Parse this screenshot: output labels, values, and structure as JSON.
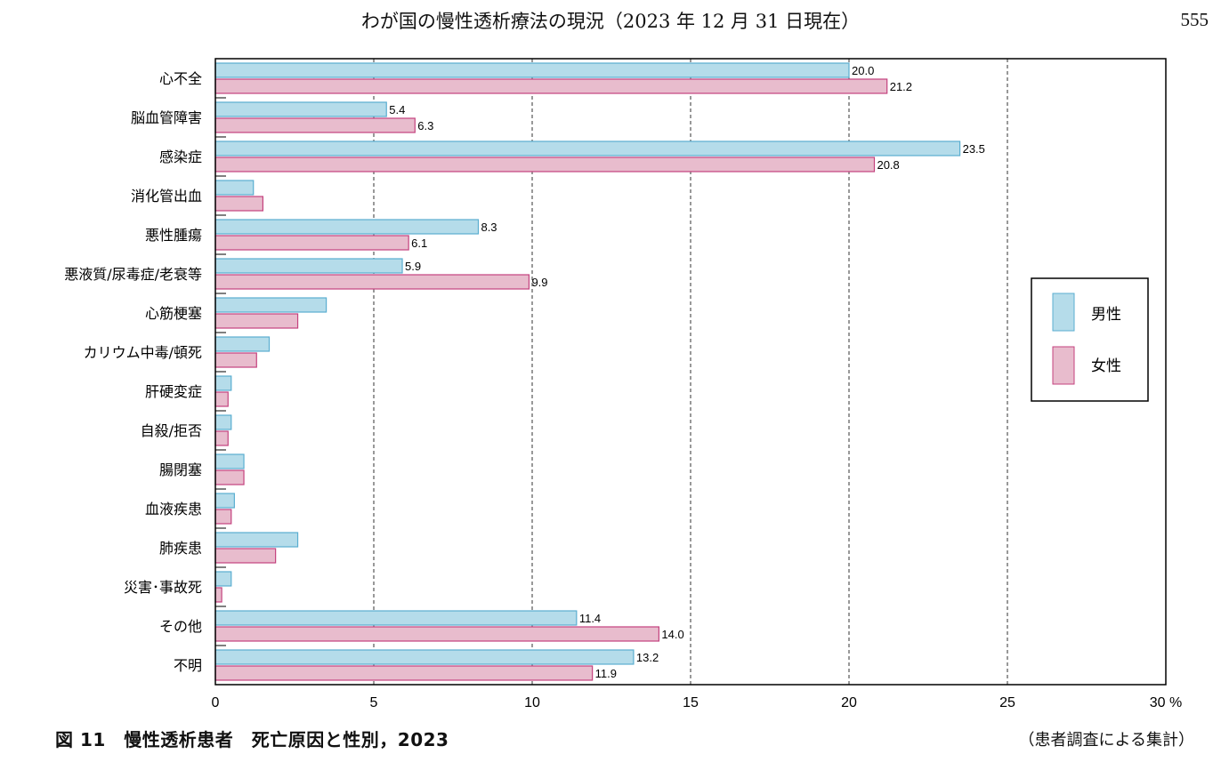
{
  "header": {
    "title": "わが国の慢性透析療法の現況（2023 年 12 月 31 日現在）",
    "page_number": "555"
  },
  "caption": {
    "figure": "図 11　慢性透析患者　死亡原因と性別，2023",
    "source": "（患者調査による集計）"
  },
  "colors": {
    "male_fill": "#b5dcea",
    "male_stroke": "#5aaed0",
    "female_fill": "#e8bccd",
    "female_stroke": "#c4427e"
  },
  "chart_data": {
    "type": "bar",
    "orientation": "horizontal",
    "categories": [
      "心不全",
      "脳血管障害",
      "感染症",
      "消化管出血",
      "悪性腫瘍",
      "悪液質/尿毒症/老衰等",
      "心筋梗塞",
      "カリウム中毒/頓死",
      "肝硬変症",
      "自殺/拒否",
      "腸閉塞",
      "血液疾患",
      "肺疾患",
      "災害･事故死",
      "その他",
      "不明"
    ],
    "series": [
      {
        "name": "男性",
        "values": [
          20.0,
          5.4,
          23.5,
          1.2,
          8.3,
          5.9,
          3.5,
          1.7,
          0.5,
          0.5,
          0.9,
          0.6,
          2.6,
          0.5,
          11.4,
          13.2
        ],
        "labels": [
          "20.0",
          "5.4",
          "23.5",
          "",
          "8.3",
          "5.9",
          "",
          "",
          "",
          "",
          "",
          "",
          "",
          "",
          "11.4",
          "13.2"
        ]
      },
      {
        "name": "女性",
        "values": [
          21.2,
          6.3,
          20.8,
          1.5,
          6.1,
          9.9,
          2.6,
          1.3,
          0.4,
          0.4,
          0.9,
          0.5,
          1.9,
          0.2,
          14.0,
          11.9
        ],
        "labels": [
          "21.2",
          "6.3",
          "20.8",
          "",
          "6.1",
          "9.9",
          "",
          "",
          "",
          "",
          "",
          "",
          "",
          "",
          "14.0",
          "11.9"
        ]
      }
    ],
    "xlim": [
      0,
      30
    ],
    "xticks": [
      "0",
      "5",
      "10",
      "15",
      "20",
      "25",
      "30 %"
    ],
    "grid": "dashed vertical",
    "legend_position": "right"
  }
}
